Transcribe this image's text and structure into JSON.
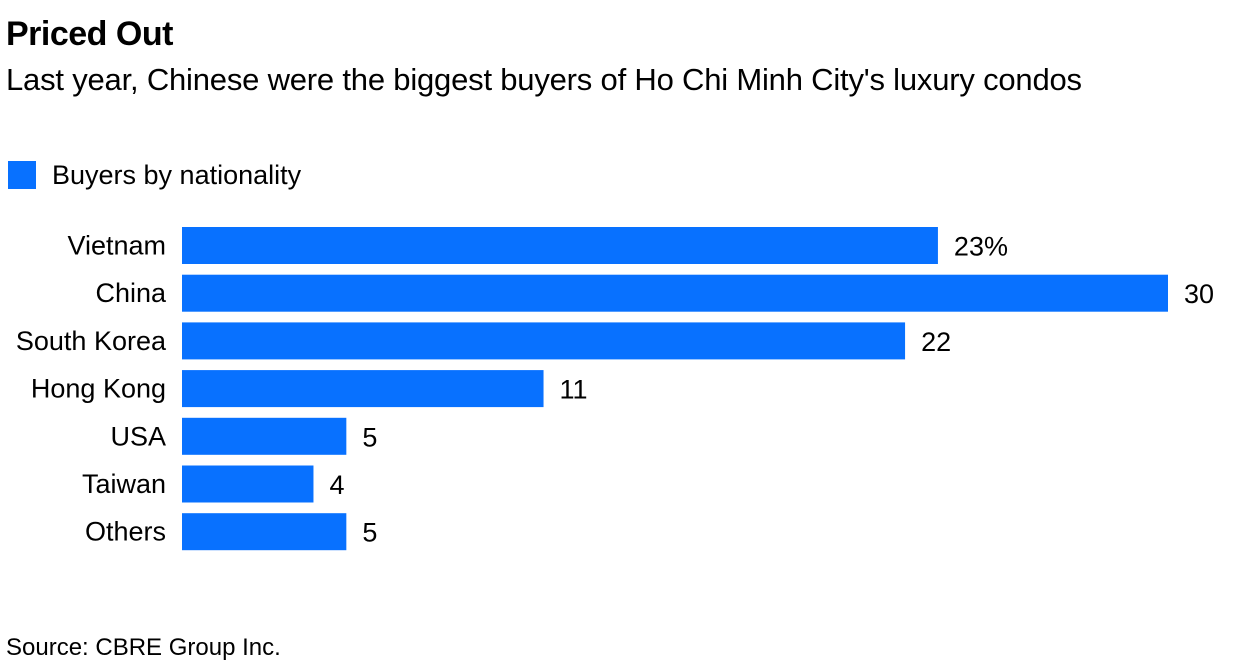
{
  "header": {
    "title": "Priced Out",
    "subtitle": "Last year, Chinese were the biggest buyers of Ho Chi Minh City's luxury condos"
  },
  "legend": {
    "label": "Buyers by nationality"
  },
  "colors": {
    "bar": "#0871FF",
    "text": "#000000",
    "background": "#FFFFFF"
  },
  "chart_data": {
    "type": "bar",
    "orientation": "horizontal",
    "categories": [
      "Vietnam",
      "China",
      "South Korea",
      "Hong Kong",
      "USA",
      "Taiwan",
      "Others"
    ],
    "series": [
      {
        "name": "Buyers by nationality",
        "values": [
          23,
          30,
          22,
          11,
          5,
          4,
          5
        ]
      }
    ],
    "value_labels": [
      "23%",
      "30",
      "22",
      "11",
      "5",
      "4",
      "5"
    ],
    "unit": "%",
    "xlim": [
      0,
      30
    ],
    "grid": false,
    "legend_position": "top-left"
  },
  "footer": {
    "source": "Source: CBRE Group Inc."
  }
}
